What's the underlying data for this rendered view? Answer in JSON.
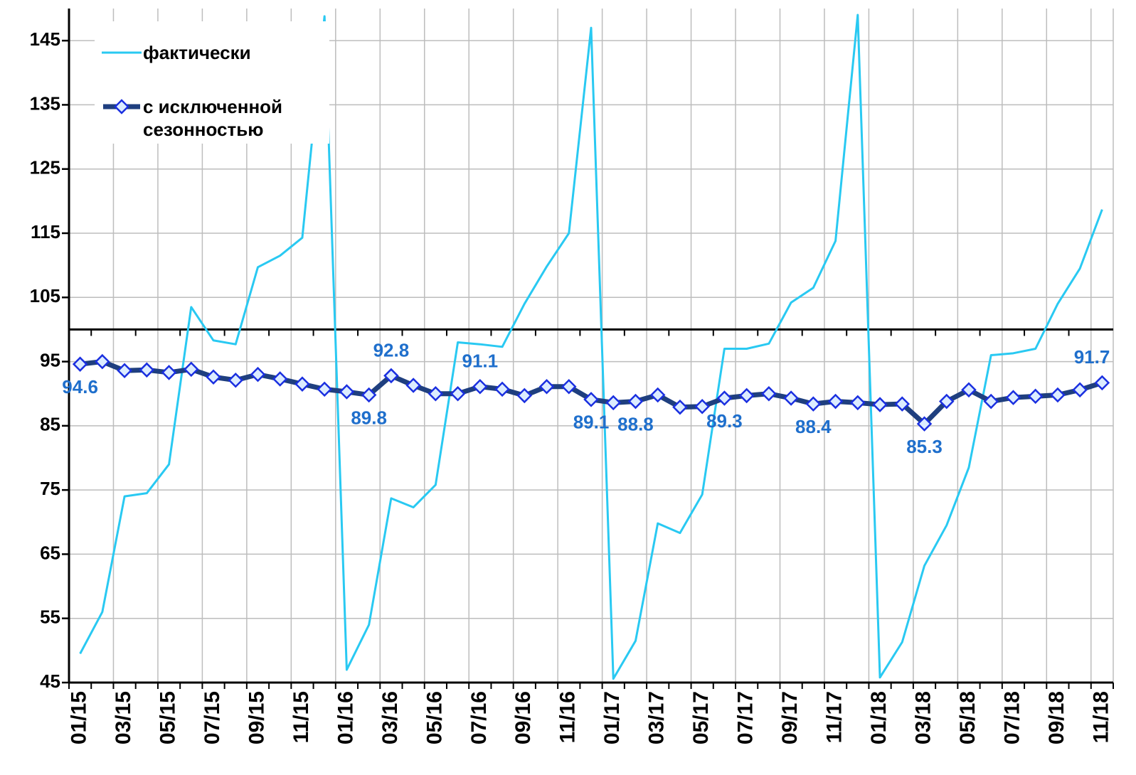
{
  "chart_data": {
    "type": "line",
    "categories": [
      "01/15",
      null,
      "03/15",
      null,
      "05/15",
      null,
      "07/15",
      null,
      "09/15",
      null,
      "11/15",
      null,
      "01/16",
      null,
      "03/16",
      null,
      "05/16",
      null,
      "07/16",
      null,
      "09/16",
      null,
      "11/16",
      null,
      "01/17",
      null,
      "03/17",
      null,
      "05/17",
      null,
      "07/17",
      null,
      "09/17",
      null,
      "11/17",
      null,
      "01/18",
      null,
      "03/18",
      null,
      "05/18",
      null,
      "07/18",
      null,
      "09/18",
      null,
      "11/18"
    ],
    "series": [
      {
        "name": "фактически",
        "color": "#29c9f2",
        "values": [
          49.5,
          56,
          74,
          74.5,
          79,
          103.5,
          98.3,
          97.7,
          109.7,
          111.5,
          114.3,
          148.8,
          47,
          54,
          73.7,
          72.3,
          75.8,
          98,
          97.7,
          97.3,
          104,
          109.8,
          115,
          147,
          45.6,
          51.5,
          69.8,
          68.3,
          74.3,
          97,
          97,
          97.8,
          104.2,
          106.5,
          113.8,
          149,
          45.8,
          51.3,
          63.2,
          69.5,
          78.5,
          96,
          96.3,
          97,
          104,
          109.5,
          118.7
        ]
      },
      {
        "name": "с исключенной сезонностью",
        "color": "#1f3f7f",
        "marker_fill": "#dcecff",
        "marker_stroke": "#1a2fe0",
        "values": [
          94.6,
          95.0,
          93.6,
          93.7,
          93.3,
          93.8,
          92.6,
          92.1,
          93.0,
          92.3,
          91.5,
          90.7,
          90.3,
          89.8,
          92.8,
          91.3,
          90.0,
          90.0,
          91.1,
          90.7,
          89.7,
          91.1,
          91.1,
          89.1,
          88.6,
          88.8,
          89.8,
          87.9,
          88.0,
          89.3,
          89.7,
          90.0,
          89.3,
          88.4,
          88.8,
          88.6,
          88.3,
          88.4,
          85.3,
          88.8,
          90.6,
          88.8,
          89.4,
          89.6,
          89.8,
          90.6,
          91.7
        ],
        "value_labels": [
          "94.6",
          null,
          null,
          null,
          null,
          null,
          null,
          null,
          null,
          null,
          null,
          null,
          null,
          "89.8",
          "92.8",
          null,
          null,
          null,
          "91.1",
          null,
          null,
          null,
          null,
          "89.1",
          null,
          "88.8",
          null,
          null,
          null,
          "89.3",
          null,
          null,
          null,
          "88.4",
          null,
          null,
          null,
          null,
          "85.3",
          null,
          null,
          null,
          null,
          null,
          null,
          null,
          "91.7"
        ],
        "label_color": "#1f6fcc"
      }
    ],
    "ylim": [
      45,
      150
    ],
    "yticks": [
      45,
      55,
      65,
      75,
      85,
      95,
      105,
      115,
      125,
      135,
      145
    ],
    "reference_line": 100,
    "grid": true,
    "legend": "upper left"
  }
}
